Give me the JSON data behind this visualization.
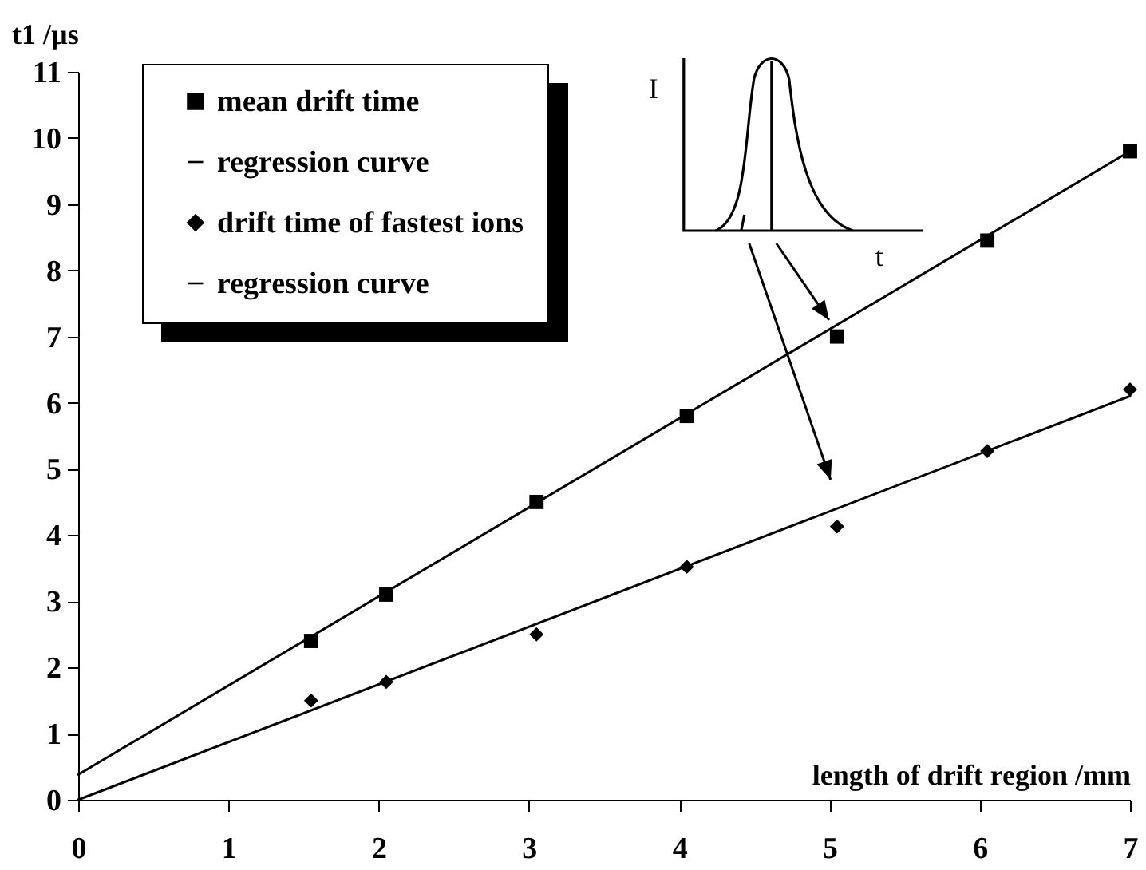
{
  "chart_data": {
    "type": "scatter",
    "xlabel": "length of drift region /mm",
    "ylabel": "t1  /µs",
    "xlim": [
      0,
      7
    ],
    "ylim": [
      0,
      11
    ],
    "xticks": [
      0,
      1,
      2,
      3,
      4,
      5,
      6,
      7
    ],
    "yticks": [
      0,
      1,
      2,
      3,
      4,
      5,
      6,
      7,
      8,
      9,
      10,
      11
    ],
    "grid": false,
    "legend": "top left",
    "annotations": [
      "I",
      "t"
    ],
    "series": [
      {
        "name": "mean drift time",
        "marker": "square",
        "color": "#000000",
        "x": [
          1.55,
          2.05,
          3.05,
          4.05,
          5.05,
          6.05,
          7
        ],
        "values": [
          2.4,
          3.1,
          4.5,
          5.8,
          7.0,
          8.45,
          9.8
        ]
      },
      {
        "name": "regression curve",
        "type": "line",
        "color": "#000000",
        "x": [
          0,
          7
        ],
        "values": [
          0.38,
          9.8
        ]
      },
      {
        "name": "drift time of fastest ions",
        "marker": "diamond",
        "color": "#000000",
        "x": [
          1.55,
          2.05,
          3.05,
          4.05,
          5.05,
          6.05,
          7
        ],
        "values": [
          1.5,
          1.78,
          2.5,
          3.52,
          4.13,
          5.27,
          6.2
        ]
      },
      {
        "name": "regression curve",
        "type": "line",
        "color": "#000000",
        "x": [
          0,
          7
        ],
        "values": [
          0,
          6.1
        ]
      }
    ]
  }
}
